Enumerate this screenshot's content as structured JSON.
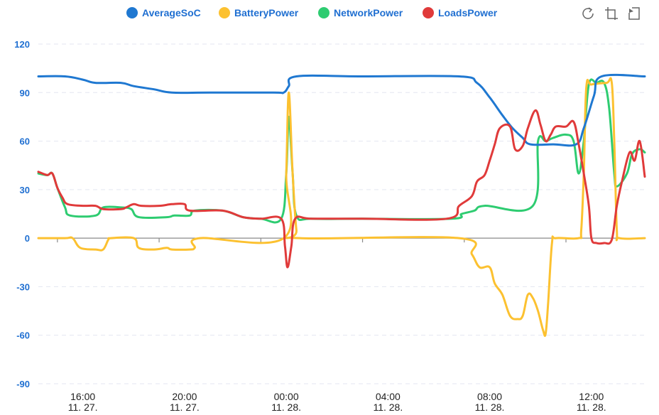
{
  "colors": {
    "AverageSoC": "#1f78d1",
    "BatteryPower": "#fcc130",
    "NetworkPower": "#2ecc71",
    "LoadsPower": "#e03a3a",
    "axis_text": "#1f6fd1",
    "grid": "#e3e6f0",
    "zero_axis": "#8a8a8a"
  },
  "toolbox": {
    "icons": [
      "refresh-icon",
      "zoom-area-icon",
      "zoom-reset-icon"
    ]
  },
  "chart_data": {
    "type": "line",
    "title": "",
    "xlabel": "",
    "ylabel": "",
    "x_unit": "hours from 15:00 on 11. 27.",
    "xlim": [
      -0.75,
      23.1
    ],
    "ylim": [
      -90,
      120
    ],
    "yticks": [
      -90,
      -60,
      -30,
      0,
      30,
      60,
      90,
      120
    ],
    "xticks": [
      {
        "x": 1,
        "time": "16:00",
        "date": "11. 27."
      },
      {
        "x": 5,
        "time": "20:00",
        "date": "11. 27."
      },
      {
        "x": 9,
        "time": "00:00",
        "date": "11. 28."
      },
      {
        "x": 13,
        "time": "04:00",
        "date": "11. 28."
      },
      {
        "x": 17,
        "time": "08:00",
        "date": "11. 28."
      },
      {
        "x": 21,
        "time": "12:00",
        "date": "11. 28."
      }
    ],
    "minor_ticks_x": [
      0,
      4,
      8,
      12,
      16,
      20
    ],
    "grid": "horizontal-dashed",
    "legend": "top-center",
    "series": [
      {
        "name": "AverageSoC",
        "points": [
          [
            -0.75,
            100
          ],
          [
            0.3,
            100
          ],
          [
            1.0,
            98
          ],
          [
            1.5,
            96
          ],
          [
            2.5,
            96
          ],
          [
            3.0,
            94
          ],
          [
            3.8,
            92
          ],
          [
            4.5,
            90
          ],
          [
            6.0,
            90
          ],
          [
            8.5,
            90
          ],
          [
            8.9,
            90
          ],
          [
            9.1,
            94
          ],
          [
            9.4,
            100
          ],
          [
            12.0,
            100
          ],
          [
            15.8,
            100
          ],
          [
            16.5,
            96
          ],
          [
            17.0,
            87
          ],
          [
            17.5,
            76
          ],
          [
            17.9,
            68
          ],
          [
            18.3,
            62
          ],
          [
            18.6,
            58
          ],
          [
            19.5,
            58
          ],
          [
            20.4,
            58
          ],
          [
            20.7,
            68
          ],
          [
            21.1,
            88
          ],
          [
            21.4,
            100
          ],
          [
            23.1,
            100
          ]
        ]
      },
      {
        "name": "BatteryPower",
        "points": [
          [
            -0.75,
            0
          ],
          [
            0.3,
            0
          ],
          [
            0.6,
            0
          ],
          [
            0.9,
            -6
          ],
          [
            1.5,
            -7
          ],
          [
            1.8,
            -7
          ],
          [
            2.0,
            -1
          ],
          [
            2.1,
            0
          ],
          [
            3.0,
            0
          ],
          [
            3.2,
            -6
          ],
          [
            3.8,
            -7
          ],
          [
            4.3,
            -6
          ],
          [
            4.5,
            -7
          ],
          [
            5.2,
            -7
          ],
          [
            5.4,
            -6
          ],
          [
            5.6,
            0
          ],
          [
            8.9,
            0
          ],
          [
            9.0,
            40
          ],
          [
            9.1,
            90
          ],
          [
            9.25,
            40
          ],
          [
            9.4,
            5
          ],
          [
            9.55,
            0
          ],
          [
            15.8,
            0
          ],
          [
            16.3,
            -10
          ],
          [
            16.6,
            -18
          ],
          [
            17.0,
            -18
          ],
          [
            17.2,
            -28
          ],
          [
            17.5,
            -35
          ],
          [
            17.8,
            -48
          ],
          [
            18.1,
            -50
          ],
          [
            18.3,
            -48
          ],
          [
            18.5,
            -35
          ],
          [
            18.7,
            -37
          ],
          [
            18.9,
            -45
          ],
          [
            19.1,
            -57
          ],
          [
            19.2,
            -59
          ],
          [
            19.3,
            -40
          ],
          [
            19.45,
            -3
          ],
          [
            19.6,
            0
          ],
          [
            20.5,
            0
          ],
          [
            20.6,
            5
          ],
          [
            20.7,
            40
          ],
          [
            20.8,
            93
          ],
          [
            21.0,
            95
          ],
          [
            21.6,
            96
          ],
          [
            21.8,
            96
          ],
          [
            21.9,
            60
          ],
          [
            22.0,
            5
          ],
          [
            22.1,
            0
          ],
          [
            23.1,
            0
          ]
        ]
      },
      {
        "name": "NetworkPower",
        "points": [
          [
            -0.75,
            40
          ],
          [
            -0.4,
            39
          ],
          [
            -0.2,
            40
          ],
          [
            0.0,
            31
          ],
          [
            0.3,
            19
          ],
          [
            0.5,
            14
          ],
          [
            1.5,
            14
          ],
          [
            1.8,
            19
          ],
          [
            2.5,
            19
          ],
          [
            2.9,
            18
          ],
          [
            3.2,
            13
          ],
          [
            4.3,
            13
          ],
          [
            4.6,
            14
          ],
          [
            5.2,
            14
          ],
          [
            5.4,
            17
          ],
          [
            6.5,
            17
          ],
          [
            7.3,
            13
          ],
          [
            8.0,
            12
          ],
          [
            8.8,
            12
          ],
          [
            9.0,
            40
          ],
          [
            9.1,
            75
          ],
          [
            9.25,
            40
          ],
          [
            9.4,
            14
          ],
          [
            10,
            12
          ],
          [
            12.0,
            12
          ],
          [
            15.5,
            12
          ],
          [
            15.9,
            15
          ],
          [
            16.4,
            17
          ],
          [
            16.8,
            20
          ],
          [
            18.7,
            20
          ],
          [
            18.9,
            60
          ],
          [
            19.2,
            60
          ],
          [
            19.5,
            62
          ],
          [
            20.0,
            64
          ],
          [
            20.3,
            60
          ],
          [
            20.5,
            40
          ],
          [
            20.7,
            60
          ],
          [
            20.9,
            95
          ],
          [
            21.2,
            96
          ],
          [
            21.5,
            96
          ],
          [
            21.7,
            80
          ],
          [
            21.9,
            40
          ],
          [
            22.0,
            32
          ],
          [
            22.4,
            40
          ],
          [
            22.6,
            52
          ],
          [
            22.9,
            55
          ],
          [
            23.1,
            53
          ]
        ]
      },
      {
        "name": "LoadsPower",
        "points": [
          [
            -0.75,
            41
          ],
          [
            -0.4,
            39
          ],
          [
            -0.2,
            40
          ],
          [
            0.0,
            31
          ],
          [
            0.2,
            25
          ],
          [
            0.4,
            21
          ],
          [
            1.0,
            20
          ],
          [
            1.5,
            20
          ],
          [
            1.8,
            18
          ],
          [
            2.5,
            18
          ],
          [
            2.7,
            19
          ],
          [
            3.0,
            21
          ],
          [
            3.3,
            20
          ],
          [
            4.0,
            20
          ],
          [
            4.5,
            21
          ],
          [
            5.0,
            21
          ],
          [
            5.2,
            17
          ],
          [
            6.5,
            17
          ],
          [
            7.3,
            13
          ],
          [
            8.0,
            12
          ],
          [
            8.8,
            12
          ],
          [
            8.95,
            -5
          ],
          [
            9.05,
            -18
          ],
          [
            9.2,
            -5
          ],
          [
            9.35,
            12
          ],
          [
            10,
            12
          ],
          [
            12.0,
            12
          ],
          [
            15.3,
            12
          ],
          [
            15.8,
            20
          ],
          [
            16.3,
            26
          ],
          [
            16.5,
            35
          ],
          [
            16.8,
            39
          ],
          [
            17.0,
            48
          ],
          [
            17.2,
            58
          ],
          [
            17.4,
            68
          ],
          [
            17.8,
            69
          ],
          [
            18.0,
            55
          ],
          [
            18.3,
            57
          ],
          [
            18.5,
            68
          ],
          [
            18.8,
            79
          ],
          [
            19.0,
            70
          ],
          [
            19.2,
            60
          ],
          [
            19.4,
            64
          ],
          [
            19.6,
            69
          ],
          [
            20.0,
            69
          ],
          [
            20.3,
            72
          ],
          [
            20.5,
            58
          ],
          [
            20.7,
            40
          ],
          [
            20.9,
            20
          ],
          [
            21.0,
            0
          ],
          [
            21.2,
            -3
          ],
          [
            21.5,
            -3
          ],
          [
            21.8,
            -1
          ],
          [
            22.0,
            20
          ],
          [
            22.2,
            35
          ],
          [
            22.5,
            53
          ],
          [
            22.7,
            48
          ],
          [
            22.9,
            60
          ],
          [
            23.1,
            38
          ]
        ]
      }
    ]
  }
}
